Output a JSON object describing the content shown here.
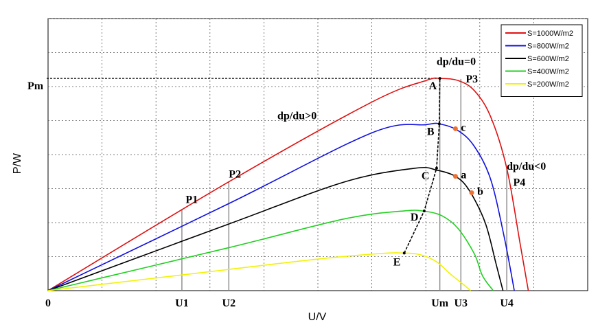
{
  "chart_data": {
    "type": "line",
    "xlabel": "U/V",
    "ylabel": "P/W",
    "xlim": [
      0,
      10
    ],
    "ylim": [
      0,
      10
    ],
    "grid": true,
    "legend_placement": "top-right",
    "x_ticks": [
      {
        "label": "0",
        "value": 0
      },
      {
        "label": "U1",
        "value": 2.48
      },
      {
        "label": "U2",
        "value": 3.35
      },
      {
        "label": "Um",
        "value": 7.26
      },
      {
        "label": "U3",
        "value": 7.65
      },
      {
        "label": "U4",
        "value": 8.5
      }
    ],
    "y_ticks": [
      {
        "label": "Pm",
        "value": 7.8
      }
    ],
    "series": [
      {
        "name": "S=1000W/m2",
        "color": "#e01010",
        "x": [
          0,
          3.35,
          6.0,
          7.0,
          7.26,
          7.6,
          7.9,
          8.2,
          8.5,
          8.75,
          8.9
        ],
        "y": [
          0,
          4.0,
          6.93,
          7.72,
          7.8,
          7.72,
          7.35,
          6.4,
          4.5,
          1.7,
          0
        ]
      },
      {
        "name": "S=800W/m2",
        "color": "#1010e0",
        "x": [
          0,
          3.35,
          6.0,
          7.0,
          7.25,
          7.6,
          7.9,
          8.2,
          8.45,
          8.64
        ],
        "y": [
          0,
          3.2,
          5.8,
          6.1,
          6.13,
          5.88,
          5.3,
          4.1,
          2.0,
          0
        ]
      },
      {
        "name": "S=600W/m2",
        "color": "#000000",
        "x": [
          0,
          3.35,
          5.5,
          6.8,
          7.2,
          7.55,
          7.8,
          8.1,
          8.3,
          8.43
        ],
        "y": [
          0,
          2.45,
          4.0,
          4.5,
          4.43,
          4.2,
          3.7,
          2.5,
          1.0,
          0
        ]
      },
      {
        "name": "S=400W/m2",
        "color": "#20d020",
        "x": [
          0,
          3.35,
          5.5,
          6.6,
          6.97,
          7.3,
          7.6,
          7.9,
          8.05,
          8.25
        ],
        "y": [
          0,
          1.58,
          2.64,
          2.93,
          2.92,
          2.75,
          2.28,
          1.35,
          0.55,
          0
        ]
      },
      {
        "name": "S=200W/m2",
        "color": "#f2f200",
        "x": [
          0,
          3.35,
          5.0,
          6.2,
          6.6,
          6.9,
          7.2,
          7.45,
          7.7,
          7.83
        ],
        "y": [
          0,
          0.78,
          1.16,
          1.37,
          1.38,
          1.32,
          1.06,
          0.62,
          0.22,
          0
        ]
      }
    ],
    "mpp_path": {
      "x": [
        6.6,
        6.97,
        7.2,
        7.25,
        7.26
      ],
      "y": [
        1.38,
        2.93,
        4.5,
        6.13,
        7.8
      ],
      "labels": [
        "E",
        "D",
        "C",
        "B",
        "A"
      ]
    },
    "marked_points": [
      {
        "label": "a",
        "x": 7.55,
        "y": 4.2,
        "color": "#f07030"
      },
      {
        "label": "b",
        "x": 7.85,
        "y": 3.6,
        "color": "#f07030"
      },
      {
        "label": "c",
        "x": 7.55,
        "y": 5.95,
        "color": "#f07030"
      }
    ],
    "annotations": [
      {
        "text": "dp/du=0",
        "x": 7.2,
        "y": 8.3
      },
      {
        "text": "dp/du>0",
        "x": 4.25,
        "y": 6.3
      },
      {
        "text": "dp/du<0",
        "x": 8.5,
        "y": 4.45
      },
      {
        "text": "P1",
        "x": 2.55,
        "y": 3.22
      },
      {
        "text": "P2",
        "x": 3.35,
        "y": 4.15
      },
      {
        "text": "P3",
        "x": 7.74,
        "y": 7.65
      },
      {
        "text": "P4",
        "x": 8.62,
        "y": 3.85
      }
    ],
    "vertical_markers": [
      {
        "x": 2.48,
        "y": 3.0
      },
      {
        "x": 3.35,
        "y": 4.0
      },
      {
        "x": 7.65,
        "y": 7.78
      },
      {
        "x": 8.5,
        "y": 4.5
      }
    ]
  }
}
